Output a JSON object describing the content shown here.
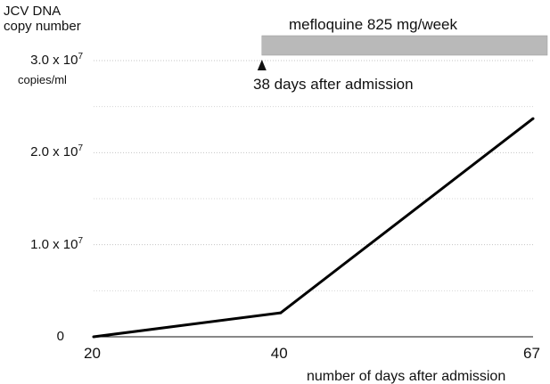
{
  "chart_data": {
    "type": "line",
    "ylabel": "JCV DNA\ncopy number",
    "yunit": "copies/ml",
    "xlabel": "number of days after admission",
    "x_ticks": [
      {
        "value": 20,
        "label": "20"
      },
      {
        "value": 40,
        "label": "40"
      },
      {
        "value": 67,
        "label": "67"
      }
    ],
    "y_ticks": [
      {
        "value": 0,
        "label": "0",
        "mant": "",
        "exp": ""
      },
      {
        "value": 10000000,
        "label": "",
        "mant": "1.0 x 10",
        "exp": "7"
      },
      {
        "value": 20000000,
        "label": "",
        "mant": "2.0 x 10",
        "exp": "7"
      },
      {
        "value": 30000000,
        "label": "",
        "mant": "3.0 x 10",
        "exp": "7"
      }
    ],
    "xlim": [
      20,
      67
    ],
    "ylim": [
      0,
      30000000
    ],
    "grid": "horizontal dotted",
    "series": [
      {
        "x": [
          20,
          40,
          67
        ],
        "y": [
          0,
          2600000,
          23700000
        ]
      }
    ],
    "annotations": {
      "treatment_label": "mefloquine 825 mg/week",
      "treatment_start_day": 38,
      "marker_label": "38 days after admission"
    }
  }
}
